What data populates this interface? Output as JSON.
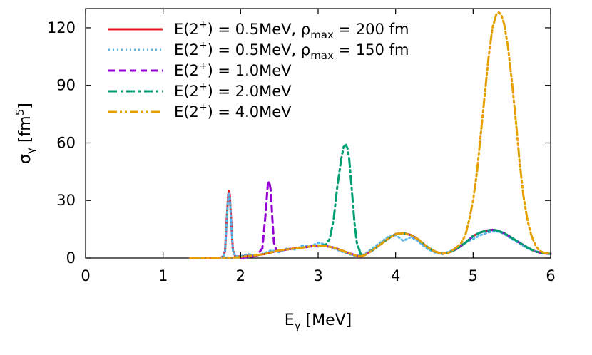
{
  "chart_data": {
    "type": "line",
    "xlabel": {
      "main": "E",
      "sub": "γ",
      "unit": " [MeV]"
    },
    "ylabel": {
      "main": "σ",
      "sub": "γ",
      "unit_pre": " [fm",
      "unit_sup": "5",
      "unit_post": "]"
    },
    "xlim": [
      0,
      6
    ],
    "ylim": [
      0,
      130
    ],
    "xticks": [
      0,
      1,
      2,
      3,
      4,
      5,
      6
    ],
    "yticks": [
      0,
      30,
      60,
      90,
      120
    ],
    "grid": false,
    "legend_position": "top-left",
    "series": [
      {
        "name": "E(2+) = 0.5MeV, ρmax = 200 fm",
        "legend": {
          "pre": "E(2",
          "sup": "+",
          "mid": ") = 0.5MeV, ρ",
          "sub": "max",
          "post": " = 200 fm"
        },
        "color": "#e41a1c",
        "style": "solid",
        "x": [
          1.35,
          1.6,
          1.7,
          1.75,
          1.78,
          1.8,
          1.82,
          1.84,
          1.85,
          1.86,
          1.88,
          1.9,
          1.93,
          1.97,
          2.0,
          2.1,
          2.2,
          2.3,
          2.4,
          2.5,
          2.6,
          2.7,
          2.8,
          2.9,
          3.0,
          3.1,
          3.2,
          3.3,
          3.4,
          3.5,
          3.55,
          3.6,
          3.7,
          3.8,
          3.9,
          4.0,
          4.1,
          4.2,
          4.3,
          4.4,
          4.5,
          4.6,
          4.7,
          4.8,
          4.9,
          5.0,
          5.1,
          5.2,
          5.25,
          5.3,
          5.4,
          5.5,
          5.6,
          5.7,
          5.8,
          5.9,
          6.0
        ],
        "y": [
          0,
          0,
          0,
          0.3,
          1,
          4,
          20,
          33,
          35,
          33,
          18,
          4,
          1,
          0.8,
          0.8,
          1.2,
          1.5,
          2,
          3,
          4,
          4.5,
          5,
          5.5,
          6,
          6.5,
          6.2,
          5.5,
          4,
          2.5,
          1.2,
          0.8,
          1.5,
          4,
          7,
          10,
          12.5,
          13,
          12,
          9.5,
          6,
          3.5,
          2.2,
          3,
          5,
          8,
          11.5,
          13.5,
          14.5,
          14.7,
          14.5,
          13,
          10.5,
          8,
          5.5,
          3.5,
          2.5,
          2.2
        ]
      },
      {
        "name": "E(2+) = 0.5MeV, ρmax = 150 fm",
        "legend": {
          "pre": "E(2",
          "sup": "+",
          "mid": ") = 0.5MeV, ρ",
          "sub": "max",
          "post": " = 150 fm"
        },
        "color": "#56b4e9",
        "style": "dotted",
        "x": [
          1.35,
          1.6,
          1.7,
          1.75,
          1.78,
          1.8,
          1.82,
          1.84,
          1.85,
          1.86,
          1.88,
          1.9,
          1.93,
          1.97,
          2.0,
          2.1,
          2.2,
          2.3,
          2.4,
          2.5,
          2.6,
          2.7,
          2.8,
          2.9,
          3.0,
          3.1,
          3.2,
          3.3,
          3.4,
          3.5,
          3.6,
          3.7,
          3.8,
          3.9,
          4.0,
          4.1,
          4.15,
          4.2,
          4.3,
          4.4,
          4.5,
          4.6,
          4.7,
          4.8,
          4.9,
          5.0,
          5.1,
          5.2,
          5.3,
          5.35,
          5.4,
          5.5,
          5.6,
          5.7,
          5.8,
          5.9,
          6.0
        ],
        "y": [
          0,
          0,
          0,
          0.3,
          1,
          4,
          19,
          32,
          34,
          32,
          17,
          4,
          1,
          0.8,
          1,
          2,
          1.2,
          2.5,
          4,
          3,
          5,
          4.5,
          6.5,
          6,
          8,
          7,
          5,
          3.5,
          2,
          1,
          2,
          5,
          8,
          11,
          12,
          9,
          10,
          11,
          8.5,
          5,
          3,
          2,
          3.5,
          5.5,
          8,
          10,
          12,
          13.5,
          14,
          13.5,
          12.5,
          10,
          7.5,
          5,
          3.5,
          2.5,
          2
        ]
      },
      {
        "name": "E(2+) = 1.0MeV",
        "legend": {
          "pre": "E(2",
          "sup": "+",
          "mid": ") = 1.0MeV",
          "sub": "",
          "post": ""
        },
        "color": "#9400d3",
        "style": "dashed",
        "x": [
          2.0,
          2.1,
          2.2,
          2.28,
          2.32,
          2.35,
          2.37,
          2.39,
          2.41,
          2.43,
          2.46,
          2.5,
          2.55,
          2.6,
          2.7,
          2.8,
          2.9,
          3.0,
          3.1,
          3.2,
          3.3,
          3.4,
          3.5,
          3.55,
          3.6,
          3.7,
          3.8,
          3.9,
          4.0,
          4.1,
          4.2,
          4.3,
          4.4,
          4.5,
          4.6,
          4.7,
          4.8,
          4.9,
          5.0,
          5.1,
          5.2,
          5.25,
          5.3,
          5.4,
          5.5,
          5.6,
          5.7,
          5.8,
          5.9,
          6.0
        ],
        "y": [
          0,
          0.5,
          1,
          5,
          22,
          38,
          40,
          35,
          20,
          8,
          4,
          3.5,
          4,
          4.5,
          5,
          5.5,
          6,
          6.5,
          6.2,
          5.5,
          4,
          2.5,
          1.2,
          0.8,
          1.5,
          4,
          7,
          10,
          12.5,
          13,
          12,
          9.5,
          6,
          3.5,
          2.2,
          3,
          5,
          8,
          11.5,
          13.5,
          14.5,
          14.7,
          14.5,
          13,
          10.5,
          8,
          5.5,
          3.5,
          2.5,
          2.2
        ]
      },
      {
        "name": "E(2+) = 2.0MeV",
        "legend": {
          "pre": "E(2",
          "sup": "+",
          "mid": ") = 2.0MeV",
          "sub": "",
          "post": ""
        },
        "color": "#009e73",
        "style": "dashdot",
        "x": [
          3.0,
          3.1,
          3.15,
          3.2,
          3.25,
          3.3,
          3.33,
          3.36,
          3.38,
          3.4,
          3.43,
          3.47,
          3.5,
          3.55,
          3.6,
          3.7,
          3.8,
          3.9,
          4.0,
          4.1,
          4.2,
          4.3,
          4.4,
          4.5,
          4.6,
          4.7,
          4.8,
          4.9,
          5.0,
          5.1,
          5.2,
          5.25,
          5.3,
          5.4,
          5.5,
          5.6,
          5.7,
          5.8,
          5.9,
          6.0
        ],
        "y": [
          6,
          7,
          10,
          20,
          38,
          52,
          58,
          59,
          57,
          52,
          38,
          18,
          8,
          2,
          1.5,
          4,
          7,
          10,
          12.5,
          13,
          12,
          9.5,
          6,
          3.5,
          2.2,
          3,
          5,
          8,
          11.5,
          13.5,
          14.5,
          14.7,
          14.5,
          13,
          10.5,
          8,
          5.5,
          3.5,
          2.5,
          2.2
        ]
      },
      {
        "name": "E(2+) = 4.0MeV",
        "legend": {
          "pre": "E(2",
          "sup": "+",
          "mid": ") = 4.0MeV",
          "sub": "",
          "post": ""
        },
        "color": "#e69f00",
        "style": "dashdotdot",
        "x": [
          1.35,
          1.6,
          1.8,
          2.0,
          2.1,
          2.2,
          2.3,
          2.4,
          2.5,
          2.6,
          2.7,
          2.8,
          2.9,
          3.0,
          3.1,
          3.2,
          3.3,
          3.4,
          3.5,
          3.55,
          3.6,
          3.7,
          3.8,
          3.9,
          4.0,
          4.1,
          4.2,
          4.3,
          4.4,
          4.5,
          4.6,
          4.7,
          4.8,
          4.85,
          4.9,
          4.95,
          5.0,
          5.05,
          5.1,
          5.15,
          5.2,
          5.25,
          5.3,
          5.33,
          5.36,
          5.4,
          5.45,
          5.5,
          5.55,
          5.6,
          5.65,
          5.7,
          5.75,
          5.8,
          5.85,
          5.9,
          5.95,
          6.0
        ],
        "y": [
          0,
          0,
          0,
          0.5,
          1,
          1.5,
          2,
          3,
          4,
          4.5,
          5,
          5.5,
          6,
          6.5,
          6.2,
          5.5,
          4,
          2.5,
          1.2,
          0.8,
          1.5,
          4,
          7,
          10,
          12.5,
          13,
          12,
          9.5,
          6,
          3.5,
          2.2,
          3,
          6,
          8,
          12,
          20,
          30,
          45,
          65,
          85,
          105,
          120,
          127,
          128,
          127,
          122,
          110,
          92,
          72,
          50,
          32,
          20,
          12,
          7,
          4,
          3,
          2.5,
          2.2
        ]
      }
    ]
  }
}
